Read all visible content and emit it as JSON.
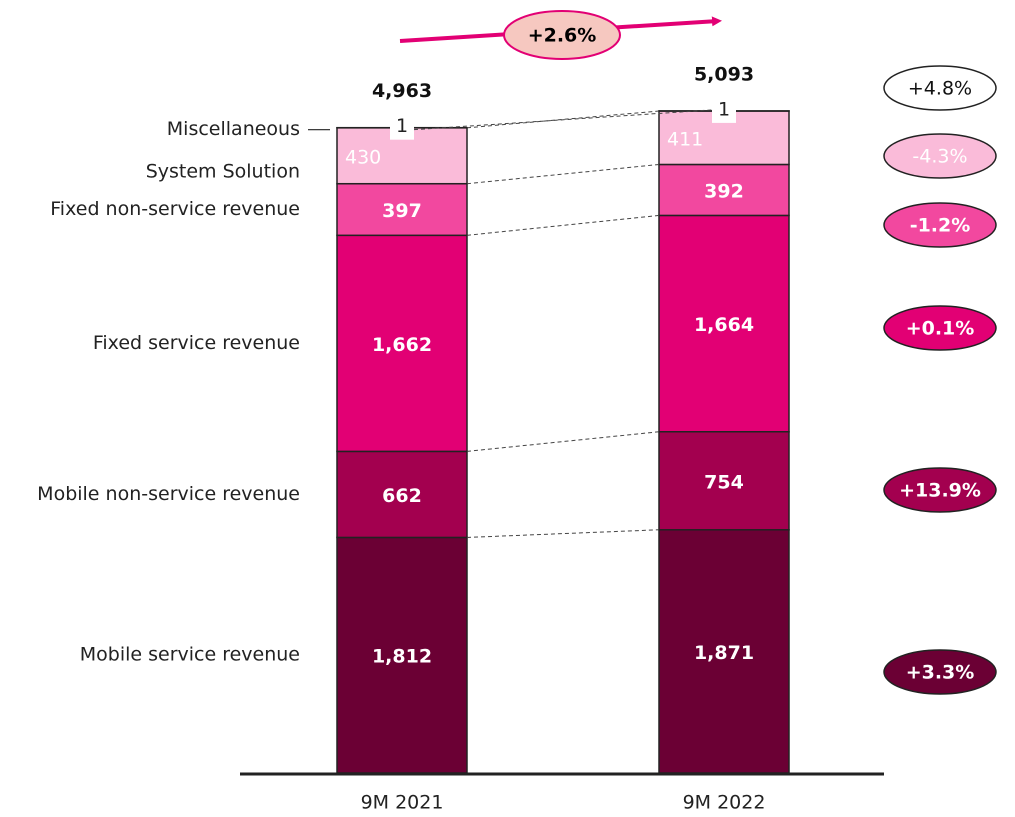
{
  "chart_data": {
    "type": "bar",
    "stacked": true,
    "categories": [
      "9M 2021",
      "9M 2022"
    ],
    "series": [
      {
        "name": "Mobile service revenue",
        "color": "#6b0034",
        "values": [
          1812,
          1871
        ],
        "value_labels": [
          "1,812",
          "1,871"
        ],
        "change": {
          "value": 3.3,
          "label": "+3.3%"
        }
      },
      {
        "name": "Mobile non-service revenue",
        "color": "#a3004f",
        "values": [
          662,
          754
        ],
        "change": {
          "value": 13.9,
          "label": "+13.9%"
        }
      },
      {
        "name": "Fixed service revenue",
        "color": "#e20074",
        "values": [
          1662,
          1664
        ],
        "value_labels": [
          "1,662",
          "1,664"
        ],
        "change": {
          "value": 0.1,
          "label": "+0.1%"
        }
      },
      {
        "name": "Fixed non-service revenue",
        "color": "#f2489f",
        "values": [
          397,
          392
        ],
        "change": {
          "value": -1.2,
          "label": "-1.2%"
        }
      },
      {
        "name": "System Solution",
        "color": "#fabbd9",
        "values": [
          430,
          411
        ],
        "change": {
          "value": -4.3,
          "label": "-4.3%"
        }
      },
      {
        "name": "Miscellaneous",
        "color": "#ffffff",
        "values": [
          1,
          1
        ],
        "change": {
          "value": 4.8,
          "label": "+4.8%"
        }
      }
    ],
    "totals": {
      "values": [
        4963,
        5093
      ],
      "value_labels": [
        "4,963",
        "5,093"
      ]
    },
    "growth": {
      "value": 2.6,
      "label": "+2.6%"
    }
  }
}
